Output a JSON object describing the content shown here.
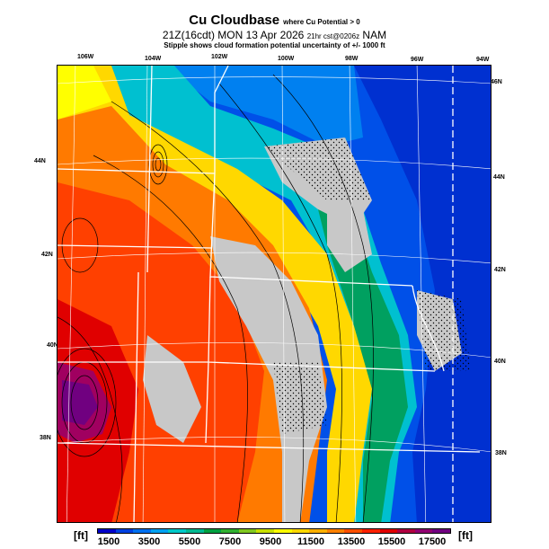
{
  "header": {
    "title": "Cu Cloudbase",
    "title_note": "where Cu Potential > 0",
    "subtitle_main": "21Z(16cdt) MON 13 Apr 2026",
    "subtitle_note": "21hr cst@0206z",
    "model": "NAM",
    "stipple_note": "Stipple shows cloud formation potential uncertainty of +/- 1000 ft"
  },
  "map": {
    "lon_labels": [
      "106W",
      "104W",
      "102W",
      "100W",
      "98W",
      "96W",
      "94W"
    ],
    "lat_labels_left": [
      "44N",
      "42N",
      "40N",
      "38N"
    ],
    "lat_labels_right": [
      "46N",
      "44N",
      "42N",
      "40N",
      "38N"
    ]
  },
  "legend": {
    "unit_left": "[ft]",
    "unit_right": "[ft]",
    "ticks": [
      "1500",
      "3500",
      "5500",
      "7500",
      "9500",
      "11500",
      "13500",
      "15500",
      "17500"
    ],
    "colors": [
      "#0000c8",
      "#0040e0",
      "#0070f0",
      "#00a0f0",
      "#00c8c8",
      "#00b890",
      "#00a040",
      "#30b030",
      "#80c820",
      "#c8e000",
      "#ffff00",
      "#ffd800",
      "#ffb000",
      "#ff8000",
      "#ff5000",
      "#ff2000",
      "#e00000",
      "#b00040",
      "#900070",
      "#700080"
    ]
  }
}
